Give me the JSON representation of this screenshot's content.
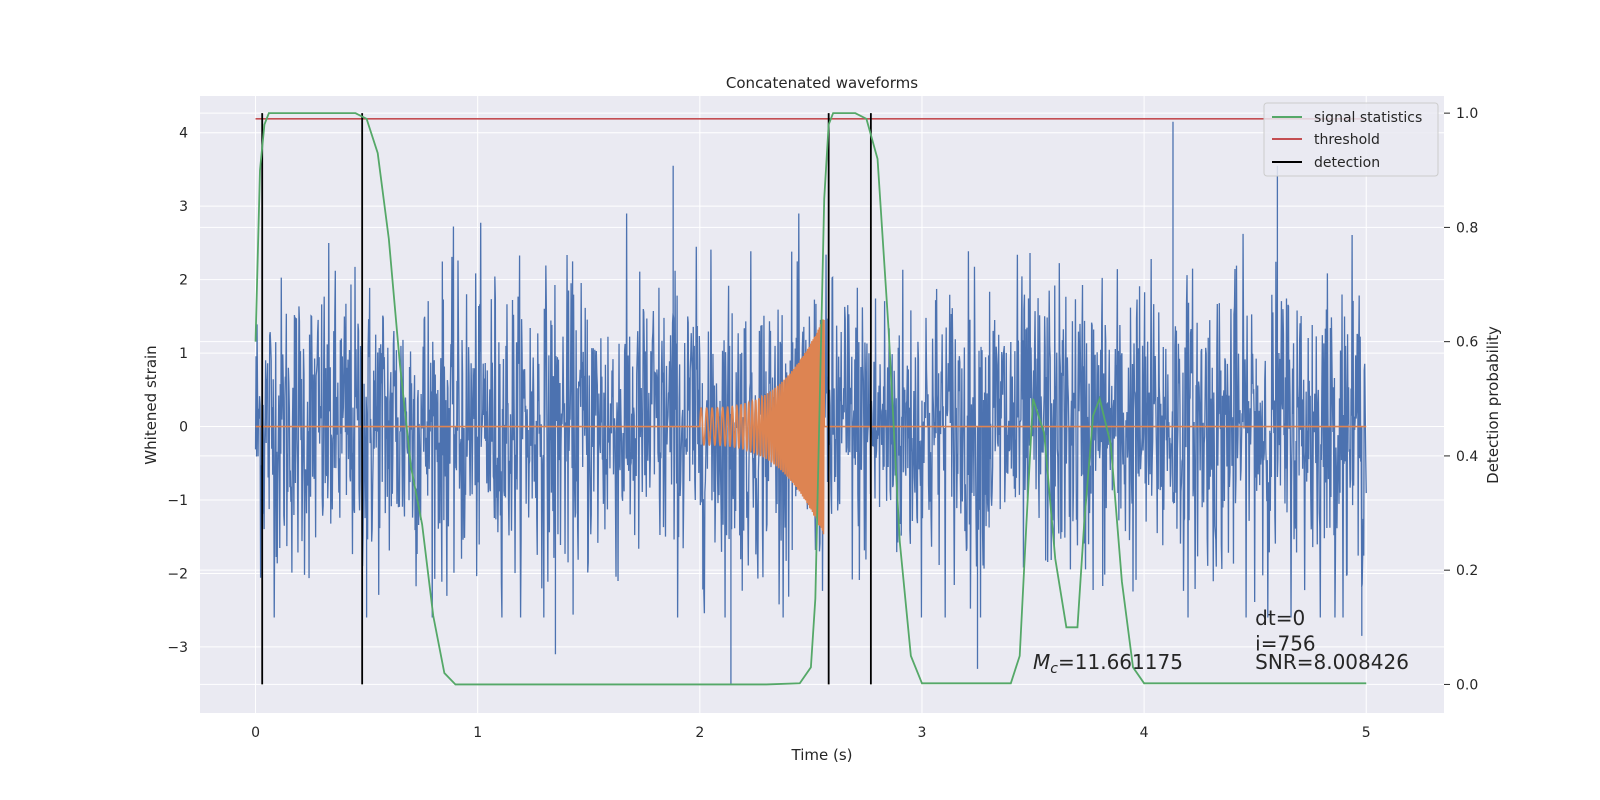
{
  "chart_data": {
    "type": "line",
    "title": "Concatenated waveforms",
    "xlabel": "Time (s)",
    "ylabel": "Whitened strain",
    "ylabel_right": "Detection probability",
    "xlim": [
      -0.25,
      5.35
    ],
    "ylim": [
      -3.9,
      4.5
    ],
    "ylim_right": [
      -0.05,
      1.03
    ],
    "xticks": [
      0,
      1,
      2,
      3,
      4,
      5
    ],
    "yticks": [
      -3,
      -2,
      -1,
      0,
      1,
      2,
      3,
      4
    ],
    "yticks_right": [
      0.0,
      0.2,
      0.4,
      0.6,
      0.8,
      1.0
    ],
    "xtick_labels": [
      "0",
      "1",
      "2",
      "3",
      "4",
      "5"
    ],
    "ytick_labels": [
      "−3",
      "−2",
      "−1",
      "0",
      "1",
      "2",
      "3",
      "4"
    ],
    "ytick_right_labels": [
      "0.0",
      "0.2",
      "0.4",
      "0.6",
      "0.8",
      "1.0"
    ],
    "grid": true,
    "legend_position": "top-right",
    "colors": {
      "background": "#eaeaf2",
      "grid": "#ffffff",
      "strain": "#4c72b0",
      "template": "#dd8452",
      "statistic": "#55a868",
      "threshold": "#c44e52",
      "detection": "#000000"
    },
    "series": [
      {
        "name": "",
        "axis": "left",
        "color": "#4c72b0",
        "description_type": "noise",
        "x_range": [
          0,
          5
        ],
        "amplitude_sigma": 1.0,
        "peaks": [
          {
            "x": 1.88,
            "y": 3.55
          },
          {
            "x": 4.13,
            "y": 4.15
          },
          {
            "x": 4.6,
            "y": 3.55
          },
          {
            "x": 2.14,
            "y": -3.5
          },
          {
            "x": 0.5,
            "y": -2.6
          },
          {
            "x": 1.35,
            "y": -3.1
          },
          {
            "x": 4.98,
            "y": -2.85
          },
          {
            "x": 3.25,
            "y": -3.3
          }
        ]
      },
      {
        "name": "",
        "axis": "left",
        "color": "#dd8452",
        "description_type": "chirp",
        "x_range": [
          0,
          5
        ],
        "chirp_start": 2.0,
        "chirp_end": 2.56,
        "amp_start": 0.25,
        "amp_end": 1.5
      },
      {
        "name": "signal statistics",
        "axis": "right",
        "color": "#55a868",
        "x": [
          0,
          0.02,
          0.04,
          0.06,
          0.1,
          0.2,
          0.45,
          0.5,
          0.55,
          0.6,
          0.65,
          0.7,
          0.75,
          0.8,
          0.85,
          0.9,
          1.0,
          2.3,
          2.45,
          2.5,
          2.52,
          2.54,
          2.56,
          2.58,
          2.6,
          2.65,
          2.7,
          2.75,
          2.8,
          2.85,
          2.9,
          2.95,
          3.0,
          3.4,
          3.44,
          3.47,
          3.5,
          3.55,
          3.6,
          3.65,
          3.7,
          3.73,
          3.77,
          3.8,
          3.85,
          3.9,
          3.95,
          4.0,
          5.0
        ],
        "y": [
          0.6,
          0.9,
          0.98,
          1.0,
          1.0,
          1.0,
          1.0,
          0.99,
          0.93,
          0.78,
          0.56,
          0.38,
          0.28,
          0.12,
          0.02,
          0.0,
          0.0,
          0.0,
          0.002,
          0.03,
          0.15,
          0.5,
          0.85,
          0.98,
          1.0,
          1.0,
          1.0,
          0.99,
          0.92,
          0.62,
          0.25,
          0.05,
          0.002,
          0.002,
          0.05,
          0.28,
          0.5,
          0.44,
          0.22,
          0.1,
          0.1,
          0.28,
          0.47,
          0.5,
          0.42,
          0.18,
          0.03,
          0.002,
          0.002
        ]
      },
      {
        "name": "threshold",
        "axis": "right",
        "color": "#c44e52",
        "x": [
          0,
          5
        ],
        "y": [
          0.99,
          0.99
        ]
      },
      {
        "name": "detection",
        "axis": "right",
        "color": "#000000",
        "type": "vlines",
        "x": [
          0.03,
          0.48,
          2.58,
          2.77
        ],
        "ymin": 0.0,
        "ymax": 1.0
      }
    ],
    "annotations": [
      {
        "text": "Mc=11.661175",
        "x": 3.5,
        "y": -3.3
      },
      {
        "text": "dt=0",
        "x": 4.5,
        "y": -2.7
      },
      {
        "text": "i=756",
        "x": 4.5,
        "y": -3.05
      },
      {
        "text": "SNR=8.008426",
        "x": 4.5,
        "y": -3.3
      }
    ]
  }
}
